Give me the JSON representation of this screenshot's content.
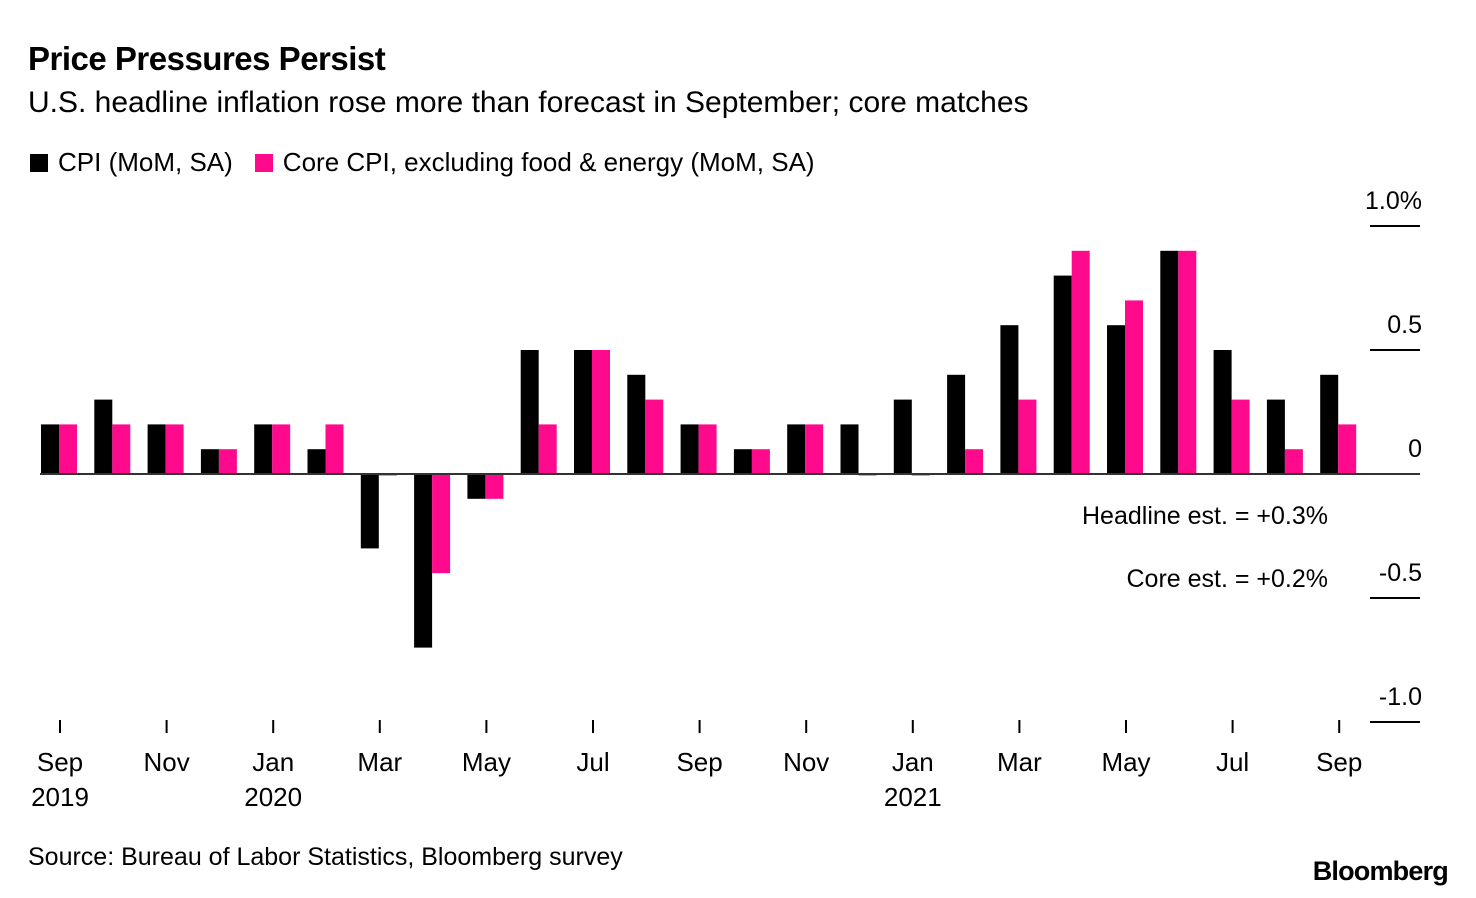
{
  "title": "Price Pressures Persist",
  "subtitle": "U.S. headline inflation rose more than forecast in September; core matches",
  "source": "Source: Bureau of Labor Statistics, Bloomberg survey",
  "logo": "Bloomberg",
  "colors": {
    "cpi": "#000000",
    "core": "#FF0A8C"
  },
  "chart_data": {
    "type": "bar",
    "title": "Price Pressures Persist",
    "subtitle": "U.S. headline inflation rose more than forecast in September; core matches",
    "xlabel": "",
    "ylabel": "",
    "ylim": [
      -1.0,
      1.0
    ],
    "y_ticks": [
      {
        "value": 1.0,
        "label": "1.0%"
      },
      {
        "value": 0.5,
        "label": "0.5"
      },
      {
        "value": 0,
        "label": "0"
      },
      {
        "value": -0.5,
        "label": "-0.5"
      },
      {
        "value": -1.0,
        "label": "-1.0"
      }
    ],
    "y_axis_position": "right",
    "grid": false,
    "legend_position": "top-left",
    "categories": [
      "Sep 2019",
      "Oct 2019",
      "Nov 2019",
      "Dec 2019",
      "Jan 2020",
      "Feb 2020",
      "Mar 2020",
      "Apr 2020",
      "May 2020",
      "Jun 2020",
      "Jul 2020",
      "Aug 2020",
      "Sep 2020",
      "Oct 2020",
      "Nov 2020",
      "Dec 2020",
      "Jan 2021",
      "Feb 2021",
      "Mar 2021",
      "Apr 2021",
      "May 2021",
      "Jun 2021",
      "Jul 2021",
      "Aug 2021",
      "Sep 2021"
    ],
    "x_tick_labels": [
      {
        "index": 0,
        "month": "Sep",
        "year": "2019"
      },
      {
        "index": 2,
        "month": "Nov",
        "year": ""
      },
      {
        "index": 4,
        "month": "Jan",
        "year": "2020"
      },
      {
        "index": 6,
        "month": "Mar",
        "year": ""
      },
      {
        "index": 8,
        "month": "May",
        "year": ""
      },
      {
        "index": 10,
        "month": "Jul",
        "year": ""
      },
      {
        "index": 12,
        "month": "Sep",
        "year": ""
      },
      {
        "index": 14,
        "month": "Nov",
        "year": ""
      },
      {
        "index": 16,
        "month": "Jan",
        "year": "2021"
      },
      {
        "index": 18,
        "month": "Mar",
        "year": ""
      },
      {
        "index": 20,
        "month": "May",
        "year": ""
      },
      {
        "index": 22,
        "month": "Jul",
        "year": ""
      },
      {
        "index": 24,
        "month": "Sep",
        "year": ""
      }
    ],
    "series": [
      {
        "name": "CPI (MoM, SA)",
        "color": "#000000",
        "values": [
          0.2,
          0.3,
          0.2,
          0.1,
          0.2,
          0.1,
          -0.3,
          -0.7,
          -0.1,
          0.5,
          0.5,
          0.4,
          0.2,
          0.1,
          0.2,
          0.2,
          0.3,
          0.4,
          0.6,
          0.8,
          0.6,
          0.9,
          0.5,
          0.3,
          0.4
        ]
      },
      {
        "name": "Core CPI, excluding food & energy (MoM, SA)",
        "color": "#FF0A8C",
        "values": [
          0.2,
          0.2,
          0.2,
          0.1,
          0.2,
          0.2,
          0.0,
          -0.4,
          -0.1,
          0.2,
          0.5,
          0.3,
          0.2,
          0.1,
          0.2,
          0.0,
          0.0,
          0.1,
          0.3,
          0.9,
          0.7,
          0.9,
          0.3,
          0.1,
          0.2
        ]
      }
    ],
    "annotations": [
      {
        "text": "Headline est. = +0.3%"
      },
      {
        "text": "Core est. = +0.2%"
      }
    ]
  }
}
